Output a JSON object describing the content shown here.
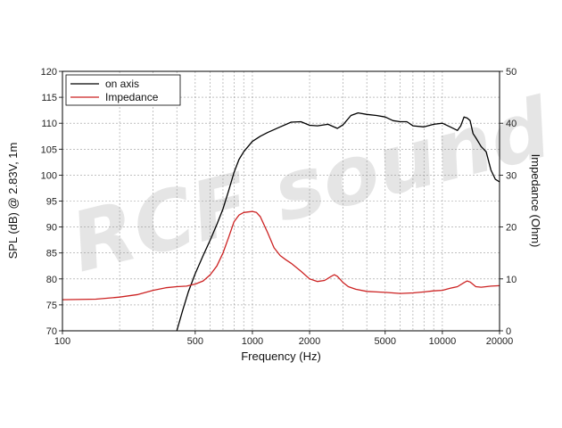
{
  "chart_data": {
    "type": "line",
    "xlabel": "Frequency (Hz)",
    "ylabel_left": "SPL (dB) @ 2.83V, 1m",
    "ylabel_right": "Impedance (Ohm)",
    "x_scale": "log",
    "xlim": [
      100,
      20000
    ],
    "ylim_left": [
      70,
      120
    ],
    "ylim_right": [
      0,
      50
    ],
    "x_ticks": [
      100,
      500,
      1000,
      2000,
      5000,
      10000,
      20000
    ],
    "x_tick_labels": [
      "100",
      "500",
      "1000",
      "2000",
      "5000",
      "10000",
      "20000"
    ],
    "y_ticks_left": [
      "70",
      "75",
      "80",
      "85",
      "90",
      "95",
      "100",
      "105",
      "110",
      "115",
      "120"
    ],
    "y_ticks_right": [
      "0",
      "10",
      "20",
      "30",
      "40",
      "50"
    ],
    "grid": true,
    "legend_position": "top-left",
    "watermark": "RCF sound",
    "series": [
      {
        "name": "on axis",
        "axis": "left",
        "color": "#000000",
        "x": [
          400,
          430,
          460,
          500,
          550,
          600,
          650,
          700,
          750,
          800,
          850,
          900,
          1000,
          1100,
          1200,
          1400,
          1600,
          1800,
          2000,
          2200,
          2500,
          2800,
          3000,
          3300,
          3600,
          4000,
          4500,
          5000,
          5500,
          6000,
          6500,
          7000,
          8000,
          9000,
          10000,
          11000,
          12000,
          12500,
          13000,
          13500,
          14000,
          14500,
          15000,
          16000,
          17000,
          18000,
          19000,
          20000
        ],
        "y": [
          70,
          74,
          77.5,
          81,
          84.5,
          87.5,
          90.5,
          93.5,
          97,
          100.5,
          103,
          104.5,
          106.5,
          107.5,
          108.2,
          109.3,
          110.2,
          110.3,
          109.6,
          109.5,
          109.8,
          109,
          109.7,
          111.5,
          112,
          111.7,
          111.5,
          111.2,
          110.5,
          110.3,
          110.3,
          109.5,
          109.3,
          109.8,
          110,
          109.3,
          108.6,
          109.5,
          111.2,
          111,
          110.5,
          108,
          107.2,
          105.5,
          104.5,
          101,
          99.2,
          98.7
        ]
      },
      {
        "name": "Impedance",
        "axis": "right",
        "color": "#cc2222",
        "x": [
          100,
          150,
          200,
          250,
          300,
          350,
          400,
          450,
          500,
          550,
          600,
          650,
          700,
          750,
          800,
          850,
          900,
          950,
          1000,
          1050,
          1100,
          1200,
          1300,
          1400,
          1500,
          1600,
          1800,
          2000,
          2200,
          2400,
          2600,
          2700,
          2800,
          3000,
          3200,
          3500,
          4000,
          4500,
          5000,
          6000,
          7000,
          8000,
          9000,
          10000,
          11000,
          12000,
          13000,
          13500,
          14000,
          15000,
          16000,
          17000,
          18000,
          20000
        ],
        "y": [
          6,
          6.1,
          6.5,
          7,
          7.8,
          8.3,
          8.5,
          8.6,
          9,
          9.6,
          10.8,
          12.5,
          15,
          18,
          21,
          22.3,
          22.8,
          22.9,
          23,
          22.8,
          22,
          19,
          16,
          14.5,
          13.7,
          13,
          11.5,
          10,
          9.5,
          9.7,
          10.5,
          10.8,
          10.5,
          9.3,
          8.5,
          8,
          7.6,
          7.5,
          7.4,
          7.2,
          7.3,
          7.5,
          7.7,
          7.8,
          8.2,
          8.5,
          9.3,
          9.6,
          9.4,
          8.5,
          8.4,
          8.5,
          8.6,
          8.7
        ]
      }
    ]
  }
}
